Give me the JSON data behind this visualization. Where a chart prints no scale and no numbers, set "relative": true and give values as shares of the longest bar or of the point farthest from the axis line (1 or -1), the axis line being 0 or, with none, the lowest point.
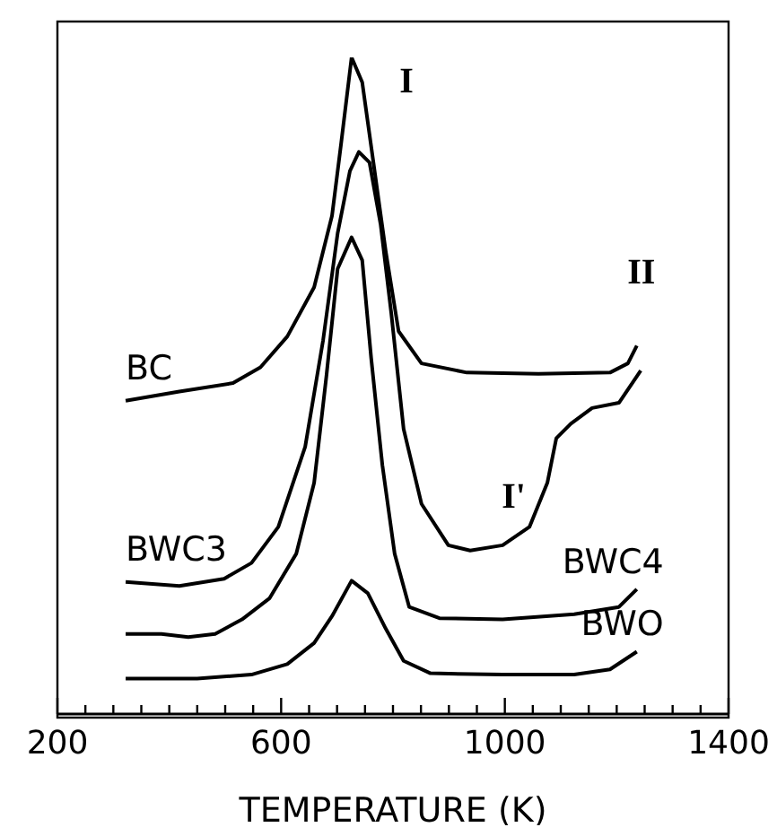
{
  "chart_data": {
    "type": "line",
    "relative": true,
    "xlabel": "TEMPERATURE (K)",
    "xlim": [
      200,
      1400
    ],
    "xticks": [
      200,
      {
        "value": 250,
        "label": null
      },
      {
        "value": 300,
        "label": null
      },
      {
        "value": 350,
        "label": null
      },
      {
        "value": 400,
        "label": null
      },
      {
        "value": 450,
        "label": null
      },
      {
        "value": 500,
        "label": null
      },
      {
        "value": 550,
        "label": null
      },
      600,
      {
        "value": 650,
        "label": null
      },
      {
        "value": 700,
        "label": null
      },
      {
        "value": 750,
        "label": null
      },
      {
        "value": 800,
        "label": null
      },
      {
        "value": 850,
        "label": null
      },
      {
        "value": 900,
        "label": null
      },
      {
        "value": 950,
        "label": null
      },
      1000,
      {
        "value": 1050,
        "label": null
      },
      {
        "value": 1100,
        "label": null
      },
      {
        "value": 1150,
        "label": null
      },
      {
        "value": 1200,
        "label": null
      },
      {
        "value": 1250,
        "label": null
      },
      {
        "value": 1300,
        "label": null
      },
      {
        "value": 1350,
        "label": null
      },
      1400
    ],
    "marker": "none",
    "line_style": "solid",
    "series": [
      {
        "name": "BC",
        "color": "#000000",
        "x": [
          322,
          418,
          514,
          563,
          611,
          659,
          691,
          707,
          726,
          745,
          765,
          787,
          810,
          851,
          932,
          1060,
          1188,
          1220,
          1236
        ],
        "values": [
          0.477,
          0.491,
          0.504,
          0.528,
          0.575,
          0.65,
          0.759,
          0.867,
          1.0,
          0.962,
          0.84,
          0.705,
          0.583,
          0.534,
          0.52,
          0.518,
          0.52,
          0.534,
          0.561
        ]
      },
      {
        "name": "BWC3",
        "color": "#000000",
        "x": [
          322,
          418,
          498,
          547,
          595,
          643,
          675,
          701,
          723,
          739,
          758,
          778,
          797,
          819,
          851,
          899,
          938,
          996,
          1044,
          1076,
          1092,
          1118,
          1156,
          1204,
          1243
        ],
        "values": [
          0.201,
          0.195,
          0.206,
          0.23,
          0.285,
          0.407,
          0.569,
          0.732,
          0.827,
          0.856,
          0.84,
          0.745,
          0.61,
          0.434,
          0.32,
          0.257,
          0.249,
          0.257,
          0.285,
          0.352,
          0.42,
          0.442,
          0.466,
          0.474,
          0.523
        ]
      },
      {
        "name": "BWC4",
        "color": "#000000",
        "x": [
          322,
          386,
          434,
          482,
          530,
          579,
          627,
          659,
          681,
          701,
          726,
          745,
          761,
          781,
          803,
          829,
          883,
          996,
          1124,
          1204,
          1236
        ],
        "values": [
          0.122,
          0.122,
          0.117,
          0.122,
          0.144,
          0.176,
          0.244,
          0.352,
          0.515,
          0.678,
          0.726,
          0.691,
          0.542,
          0.379,
          0.244,
          0.163,
          0.146,
          0.144,
          0.152,
          0.163,
          0.19
        ]
      },
      {
        "name": "BWO",
        "color": "#000000",
        "x": [
          322,
          450,
          547,
          611,
          659,
          691,
          726,
          755,
          787,
          819,
          867,
          996,
          1124,
          1188,
          1236
        ],
        "values": [
          0.054,
          0.054,
          0.06,
          0.076,
          0.108,
          0.149,
          0.203,
          0.184,
          0.13,
          0.081,
          0.062,
          0.06,
          0.06,
          0.068,
          0.095
        ]
      }
    ],
    "annotations": [
      "I",
      "II",
      "I'"
    ]
  }
}
